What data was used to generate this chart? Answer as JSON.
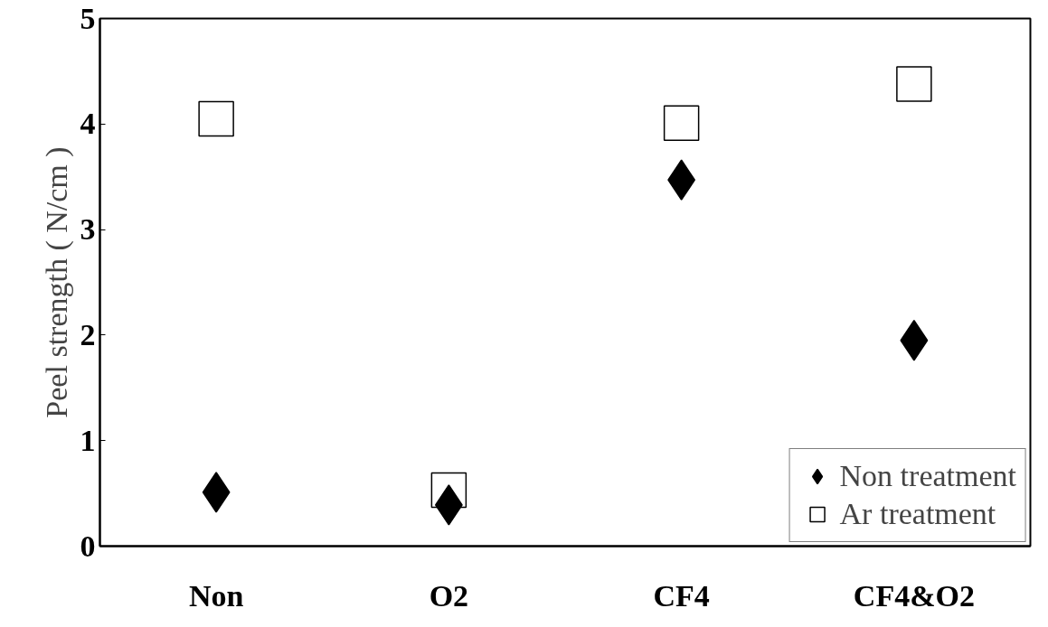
{
  "chart_data": {
    "type": "scatter",
    "ylabel": "Peel strength ( N/cm )",
    "categories": [
      "Non",
      "O2",
      "CF4",
      "CF4&O2"
    ],
    "series": [
      {
        "name": "Non treatment",
        "color": "#000000",
        "marker": "diamond",
        "values": [
          0.51,
          0.39,
          3.47,
          1.95
        ]
      },
      {
        "name": "Ar treatment",
        "color": "#000000",
        "marker": "square",
        "values": [
          4.05,
          0.53,
          4.01,
          4.38
        ]
      }
    ],
    "ylim": [
      0,
      5
    ],
    "yticks": [
      0,
      1,
      2,
      3,
      4,
      5
    ],
    "grid": false,
    "legend": "bottom right"
  }
}
